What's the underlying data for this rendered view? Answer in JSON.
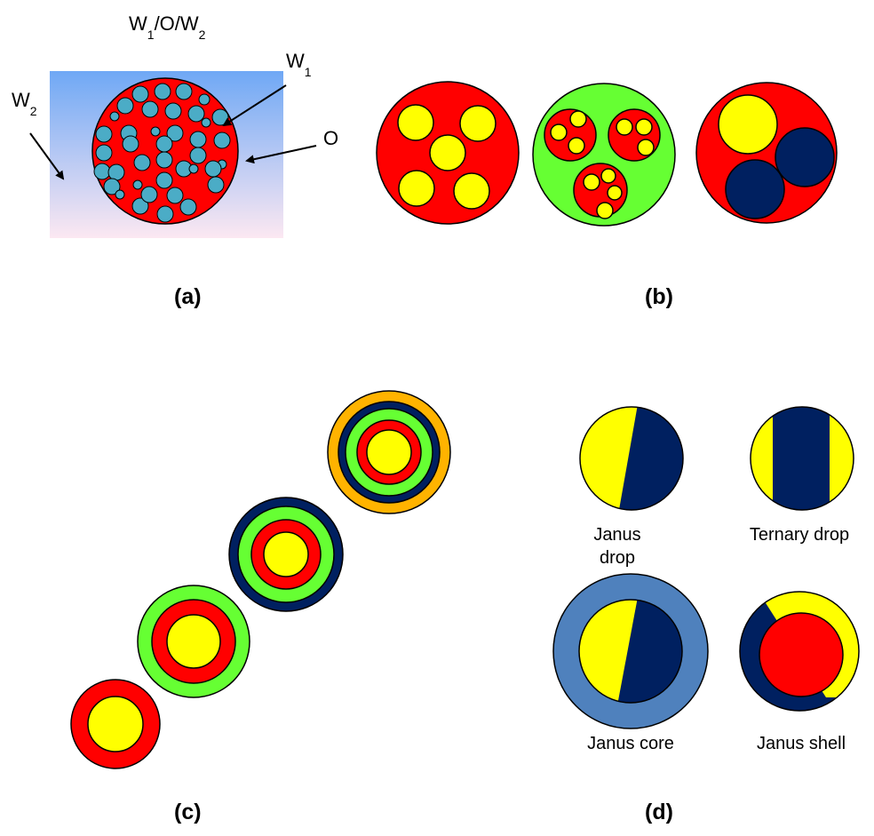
{
  "colors": {
    "red": "#ff0000",
    "yellow": "#ffff00",
    "green": "#66ff33",
    "navy": "#002060",
    "orange": "#ffb300",
    "steel_blue": "#4f81bd",
    "droplet_teal": "#4bacc6",
    "gradient_top": "#6fa8f5",
    "gradient_bottom": "#fce8f2"
  },
  "panel_a": {
    "title": {
      "w1": "W",
      "sub1": "1",
      "mid": "/O/W",
      "sub2": "2"
    },
    "label_w2": {
      "main": "W",
      "sub": "2"
    },
    "label_w1": {
      "main": "W",
      "sub": "1"
    },
    "label_o": "O",
    "tag": "(a)"
  },
  "panel_b": {
    "tag": "(b)"
  },
  "panel_c": {
    "tag": "(c)"
  },
  "panel_d": {
    "tag": "(d)",
    "janus_drop_line1": "Janus",
    "janus_drop_line2": "drop",
    "ternary_drop": "Ternary drop",
    "janus_core": "Janus core",
    "janus_shell": "Janus shell"
  }
}
